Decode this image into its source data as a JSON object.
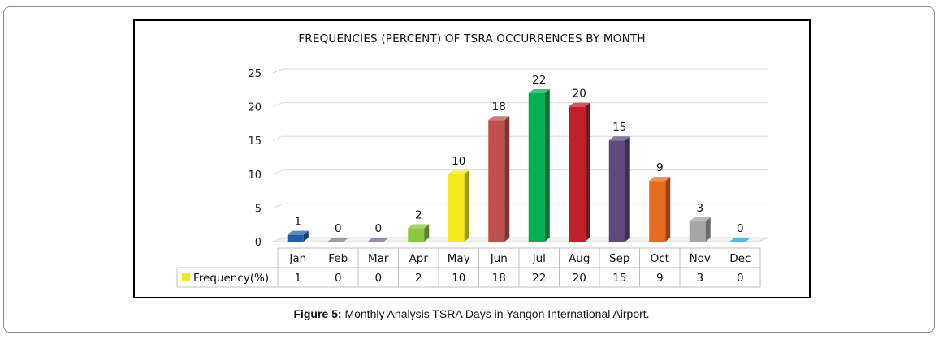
{
  "chart_data": {
    "type": "bar",
    "title": "FREQUENCIES (PERCENT) OF TSRA OCCURRENCES BY MONTH",
    "categories": [
      "Jan",
      "Feb",
      "Mar",
      "Apr",
      "May",
      "Jun",
      "Jul",
      "Aug",
      "Sep",
      "Oct",
      "Nov",
      "Dec"
    ],
    "series": [
      {
        "name": "Frequency(%)",
        "values": [
          1,
          0,
          0,
          2,
          10,
          18,
          22,
          20,
          15,
          9,
          3,
          0
        ]
      }
    ],
    "bar_colors": [
      "#1f5fa8",
      "#7f7f7f",
      "#7b5ea3",
      "#8dc63f",
      "#f5e71c",
      "#c0504d",
      "#00b050",
      "#c0202a",
      "#604a7b",
      "#e46c1e",
      "#a6a6a6",
      "#1aa3d8"
    ],
    "legend_color": "#f5e71c",
    "ylim": [
      0,
      25
    ],
    "yticks": [
      0,
      5,
      10,
      15,
      20,
      25
    ],
    "grid": true,
    "legend": "data-table",
    "xlabel": "",
    "ylabel": ""
  },
  "caption": {
    "label": "Figure 5:",
    "text": " Monthly Analysis TSRA Days in Yangon International Airport."
  }
}
